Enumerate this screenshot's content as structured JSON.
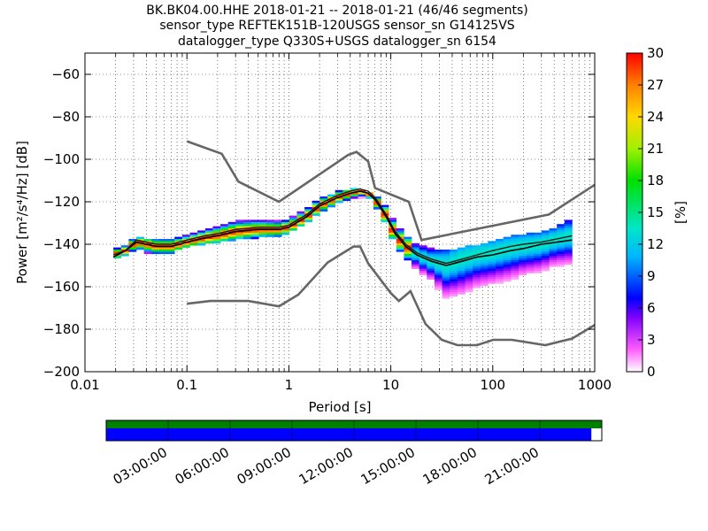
{
  "figure": {
    "title_lines": [
      "BK.BK04.00.HHE   2018-01-21 -- 2018-01-21  (46/46 segments)",
      "sensor_type REFTEK151B-120USGS sensor_sn G14125VS",
      "datalogger_type Q330S+USGS datalogger_sn 6154"
    ]
  },
  "chart_data": {
    "type": "heatmap",
    "xlabel": "Period [s]",
    "ylabel": "Power [m²/s⁴/Hz] [dB]",
    "xscale": "log",
    "xlim": [
      0.01,
      1000
    ],
    "ylim": [
      -200,
      -50
    ],
    "x_ticks": [
      0.01,
      0.1,
      1,
      10,
      100,
      1000
    ],
    "x_tick_labels": [
      "0.01",
      "0.1",
      "1",
      "10",
      "100",
      "1000"
    ],
    "y_ticks": [
      -200,
      -180,
      -160,
      -140,
      -120,
      -100,
      -80,
      -60
    ],
    "y_tick_labels": [
      "−200",
      "−180",
      "−160",
      "−140",
      "−120",
      "−100",
      "−80",
      "−60"
    ],
    "grid": true,
    "colorbar": {
      "label": "[%]",
      "range": [
        0,
        30
      ],
      "ticks": [
        0,
        3,
        6,
        9,
        12,
        15,
        18,
        21,
        24,
        27,
        30
      ],
      "tick_labels": [
        "0",
        "3",
        "6",
        "9",
        "12",
        "15",
        "18",
        "21",
        "24",
        "27",
        "30"
      ]
    },
    "noise_models": {
      "nhnm": {
        "color": "#666666",
        "points": [
          [
            0.1,
            -91.5
          ],
          [
            0.22,
            -97.4
          ],
          [
            0.32,
            -110.5
          ],
          [
            0.8,
            -120
          ],
          [
            3.8,
            -98
          ],
          [
            4.6,
            -96.5
          ],
          [
            6,
            -101
          ],
          [
            7,
            -113.5
          ],
          [
            15,
            -120
          ],
          [
            20,
            -138
          ],
          [
            354.8,
            -126
          ],
          [
            1000,
            -112
          ]
        ]
      },
      "nlnm": {
        "color": "#666666",
        "points": [
          [
            0.1,
            -168
          ],
          [
            0.17,
            -166.7
          ],
          [
            0.4,
            -166.7
          ],
          [
            0.8,
            -169.2
          ],
          [
            1.24,
            -163.7
          ],
          [
            2.4,
            -148.6
          ],
          [
            4.3,
            -141.1
          ],
          [
            5,
            -141.1
          ],
          [
            6,
            -149
          ],
          [
            10,
            -163
          ],
          [
            12,
            -166.7
          ],
          [
            15.6,
            -162.1
          ],
          [
            21.9,
            -177.5
          ],
          [
            31.6,
            -185
          ],
          [
            45,
            -187.5
          ],
          [
            70,
            -187.5
          ],
          [
            101,
            -185
          ],
          [
            154,
            -185
          ],
          [
            328,
            -187.5
          ],
          [
            600,
            -184.4
          ],
          [
            1000,
            -178
          ]
        ]
      }
    },
    "density_band": [
      {
        "period": 0.019,
        "low": -147,
        "high": -142,
        "peak": -145
      },
      {
        "period": 0.025,
        "low": -145,
        "high": -140,
        "peak": -143
      },
      {
        "period": 0.032,
        "low": -142,
        "high": -136,
        "peak": -139
      },
      {
        "period": 0.04,
        "low": -144,
        "high": -137,
        "peak": -140
      },
      {
        "period": 0.05,
        "low": -145,
        "high": -138,
        "peak": -141
      },
      {
        "period": 0.07,
        "low": -144,
        "high": -137,
        "peak": -141
      },
      {
        "period": 0.1,
        "low": -141,
        "high": -135,
        "peak": -139
      },
      {
        "period": 0.15,
        "low": -140,
        "high": -133,
        "peak": -137
      },
      {
        "period": 0.2,
        "low": -139,
        "high": -131,
        "peak": -136
      },
      {
        "period": 0.3,
        "low": -138,
        "high": -129,
        "peak": -134
      },
      {
        "period": 0.5,
        "low": -137,
        "high": -129,
        "peak": -133
      },
      {
        "period": 0.8,
        "low": -136,
        "high": -129,
        "peak": -133
      },
      {
        "period": 1,
        "low": -135,
        "high": -128,
        "peak": -132
      },
      {
        "period": 1.5,
        "low": -130,
        "high": -123,
        "peak": -127
      },
      {
        "period": 2,
        "low": -125,
        "high": -118,
        "peak": -122
      },
      {
        "period": 3,
        "low": -121,
        "high": -115,
        "peak": -118
      },
      {
        "period": 4,
        "low": -119,
        "high": -114,
        "peak": -116
      },
      {
        "period": 5,
        "low": -118,
        "high": -114,
        "peak": -115
      },
      {
        "period": 6,
        "low": -118,
        "high": -115,
        "peak": -116
      },
      {
        "period": 7,
        "low": -122,
        "high": -117,
        "peak": -119
      },
      {
        "period": 9,
        "low": -131,
        "high": -122,
        "peak": -127
      },
      {
        "period": 11,
        "low": -140,
        "high": -130,
        "peak": -136
      },
      {
        "period": 14,
        "low": -147,
        "high": -136,
        "peak": -141
      },
      {
        "period": 18,
        "low": -152,
        "high": -140,
        "peak": -145
      },
      {
        "period": 25,
        "low": -157,
        "high": -142,
        "peak": -148
      },
      {
        "period": 35,
        "low": -168,
        "high": -143,
        "peak": -150
      },
      {
        "period": 50,
        "low": -168,
        "high": -141,
        "peak": -147
      },
      {
        "period": 70,
        "low": -165,
        "high": -140,
        "peak": -145
      },
      {
        "period": 100,
        "low": -162,
        "high": -138,
        "peak": -144
      },
      {
        "period": 150,
        "low": -160,
        "high": -136,
        "peak": -142
      },
      {
        "period": 200,
        "low": -157,
        "high": -135,
        "peak": -141
      },
      {
        "period": 300,
        "low": -155,
        "high": -134,
        "peak": -140
      },
      {
        "period": 400,
        "low": -152,
        "high": -132,
        "peak": -138
      },
      {
        "period": 600,
        "low": -150,
        "high": -128,
        "peak": -136
      }
    ],
    "mean_curve": [
      [
        0.019,
        -146
      ],
      [
        0.025,
        -143
      ],
      [
        0.032,
        -139
      ],
      [
        0.04,
        -140
      ],
      [
        0.05,
        -141
      ],
      [
        0.07,
        -141
      ],
      [
        0.1,
        -139
      ],
      [
        0.15,
        -137
      ],
      [
        0.2,
        -136
      ],
      [
        0.3,
        -134
      ],
      [
        0.5,
        -133
      ],
      [
        0.8,
        -133
      ],
      [
        1,
        -132
      ],
      [
        1.5,
        -127
      ],
      [
        2,
        -122
      ],
      [
        3,
        -118
      ],
      [
        4,
        -116
      ],
      [
        5,
        -115
      ],
      [
        6,
        -116
      ],
      [
        7,
        -119
      ],
      [
        9,
        -127
      ],
      [
        11,
        -135
      ],
      [
        14,
        -141
      ],
      [
        18,
        -145
      ],
      [
        25,
        -148
      ],
      [
        35,
        -150
      ],
      [
        50,
        -148
      ],
      [
        70,
        -146
      ],
      [
        100,
        -145
      ],
      [
        150,
        -143
      ],
      [
        200,
        -142
      ],
      [
        300,
        -140
      ],
      [
        600,
        -138
      ]
    ],
    "mode_curve": [
      [
        0.019,
        -145
      ],
      [
        0.025,
        -143
      ],
      [
        0.032,
        -138
      ],
      [
        0.04,
        -139
      ],
      [
        0.05,
        -140
      ],
      [
        0.07,
        -140
      ],
      [
        0.1,
        -138
      ],
      [
        0.15,
        -136
      ],
      [
        0.2,
        -135
      ],
      [
        0.3,
        -133
      ],
      [
        0.5,
        -132
      ],
      [
        0.8,
        -132
      ],
      [
        1,
        -131
      ],
      [
        1.5,
        -126
      ],
      [
        2,
        -121
      ],
      [
        3,
        -117
      ],
      [
        4,
        -115
      ],
      [
        5,
        -114
      ],
      [
        6,
        -115
      ],
      [
        7,
        -118
      ],
      [
        9,
        -126
      ],
      [
        11,
        -134
      ],
      [
        14,
        -140
      ],
      [
        18,
        -144
      ],
      [
        25,
        -147
      ],
      [
        35,
        -149
      ],
      [
        50,
        -147
      ],
      [
        70,
        -145
      ],
      [
        100,
        -143
      ],
      [
        150,
        -141
      ],
      [
        200,
        -140
      ],
      [
        300,
        -139
      ],
      [
        600,
        -136
      ]
    ],
    "timeline": {
      "ticks": [
        "03:00:00",
        "06:00:00",
        "09:00:00",
        "12:00:00",
        "15:00:00",
        "18:00:00",
        "21:00:00"
      ],
      "coverage_fraction": 0.979,
      "data_color": "#0000ff",
      "available_color": "#008000"
    }
  }
}
